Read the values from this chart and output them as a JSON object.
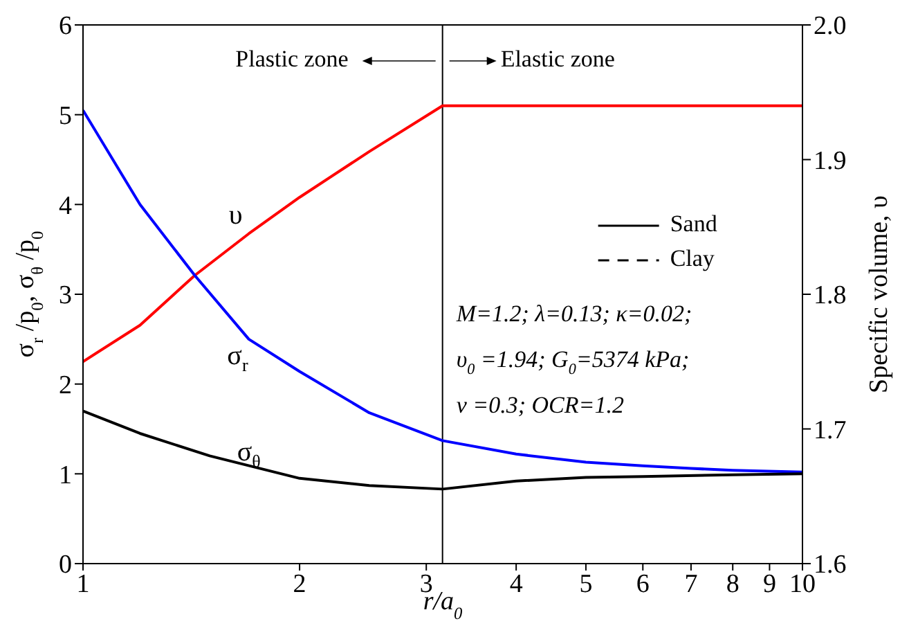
{
  "chart_data": {
    "type": "line",
    "xlabel": "r/a$_{0}$",
    "ylabel": "σ$_{r}$ /p$_{0}$, σ$_{θ}$ /p$_{0}$",
    "y2label": "Specific volume, υ",
    "log": "x",
    "xlim": [
      1,
      10
    ],
    "xticks": [
      1,
      2,
      3,
      4,
      5,
      6,
      7,
      8,
      9,
      10
    ],
    "ylim": [
      0,
      6
    ],
    "yticks": [
      0,
      1,
      2,
      3,
      4,
      5,
      6
    ],
    "y2lim": [
      1.6,
      2.0
    ],
    "y2ticks": [
      {
        "value": 1.6,
        "label": "1.6"
      },
      {
        "value": 1.7,
        "label": "1.7"
      },
      {
        "value": 1.8,
        "label": "1.8"
      },
      {
        "value": 1.9,
        "label": "1.9"
      },
      {
        "value": 2.0,
        "label": "2.0"
      }
    ],
    "marker": "none",
    "line_style": "solid",
    "series": [
      {
        "color": "#ff0000",
        "axis": "y2",
        "x": [
          1,
          1.2,
          1.43,
          1.7,
          2,
          2.5,
          3.16,
          10
        ],
        "values": [
          1.75,
          1.777,
          1.814,
          1.845,
          1.872,
          1.906,
          1.94,
          1.94
        ]
      },
      {
        "color": "#0000ff",
        "x": [
          1,
          1.2,
          1.43,
          1.7,
          2,
          2.5,
          3.16,
          4,
          5,
          6,
          7,
          8,
          10
        ],
        "values": [
          5.05,
          4.0,
          3.21,
          2.5,
          2.14,
          1.68,
          1.37,
          1.22,
          1.13,
          1.09,
          1.06,
          1.04,
          1.02
        ]
      },
      {
        "color": "#000000",
        "x": [
          1,
          1.2,
          1.5,
          2,
          2.5,
          3.16,
          4,
          5,
          6,
          8,
          10
        ],
        "values": [
          1.7,
          1.45,
          1.2,
          0.95,
          0.87,
          0.83,
          0.92,
          0.96,
          0.97,
          0.99,
          1.0
        ]
      }
    ],
    "ref_lines": [
      {
        "axis": "x",
        "value": 3.16,
        "color": "#000000"
      }
    ],
    "annotations": [
      "υ",
      "σ$_{r}$",
      "σ$_{θ}$",
      "Plastic zone",
      "Elastic zone",
      "Sand",
      "Clay",
      "M=1.2; λ=0.13; κ=0.02;",
      "υ$_{0}$ =1.94; G$_{0}$=5374 kPa;",
      "v =0.3; OCR=1.2"
    ]
  }
}
